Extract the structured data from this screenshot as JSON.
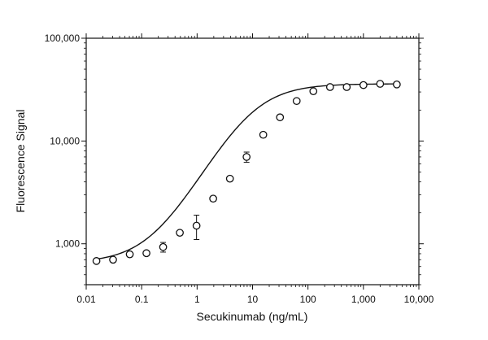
{
  "chart_data": {
    "type": "scatter",
    "xlabel": "Secukinumab (ng/mL)",
    "ylabel": "Fluorescence Signal",
    "x_scale": "log",
    "y_scale": "log",
    "xlim": [
      0.01,
      10000
    ],
    "ylim": [
      400,
      100000
    ],
    "x_ticks": [
      {
        "value": 0.01,
        "label": "0.01"
      },
      {
        "value": 0.1,
        "label": "0.1"
      },
      {
        "value": 1,
        "label": "1"
      },
      {
        "value": 10,
        "label": "10"
      },
      {
        "value": 100,
        "label": "100"
      },
      {
        "value": 1000,
        "label": "1,000"
      },
      {
        "value": 10000,
        "label": "10,000"
      }
    ],
    "y_ticks": [
      {
        "value": 1000,
        "label": "1,000"
      },
      {
        "value": 10000,
        "label": "10,000"
      },
      {
        "value": 100000,
        "label": "100,000"
      }
    ],
    "grid": false,
    "series": [
      {
        "x": [
          0.0153,
          0.0305,
          0.061,
          0.122,
          0.244,
          0.488,
          0.977,
          1.95,
          3.91,
          7.81,
          15.6,
          31.3,
          62.5,
          125,
          250,
          500,
          1000,
          2000,
          4000
        ],
        "y": [
          680,
          700,
          790,
          810,
          930,
          1280,
          1500,
          2750,
          4300,
          7000,
          11500,
          17000,
          24500,
          30500,
          33500,
          33500,
          35000,
          36000,
          35500
        ],
        "y_err": [
          25,
          25,
          40,
          40,
          100,
          60,
          400,
          150,
          150,
          800,
          600,
          800,
          800,
          1000,
          1000,
          1000,
          1000,
          1000,
          1000
        ]
      }
    ],
    "fit": {
      "type": "4PL",
      "bottom": 650,
      "top": 36000,
      "ec50": 9.2,
      "hill": 1.0
    }
  }
}
